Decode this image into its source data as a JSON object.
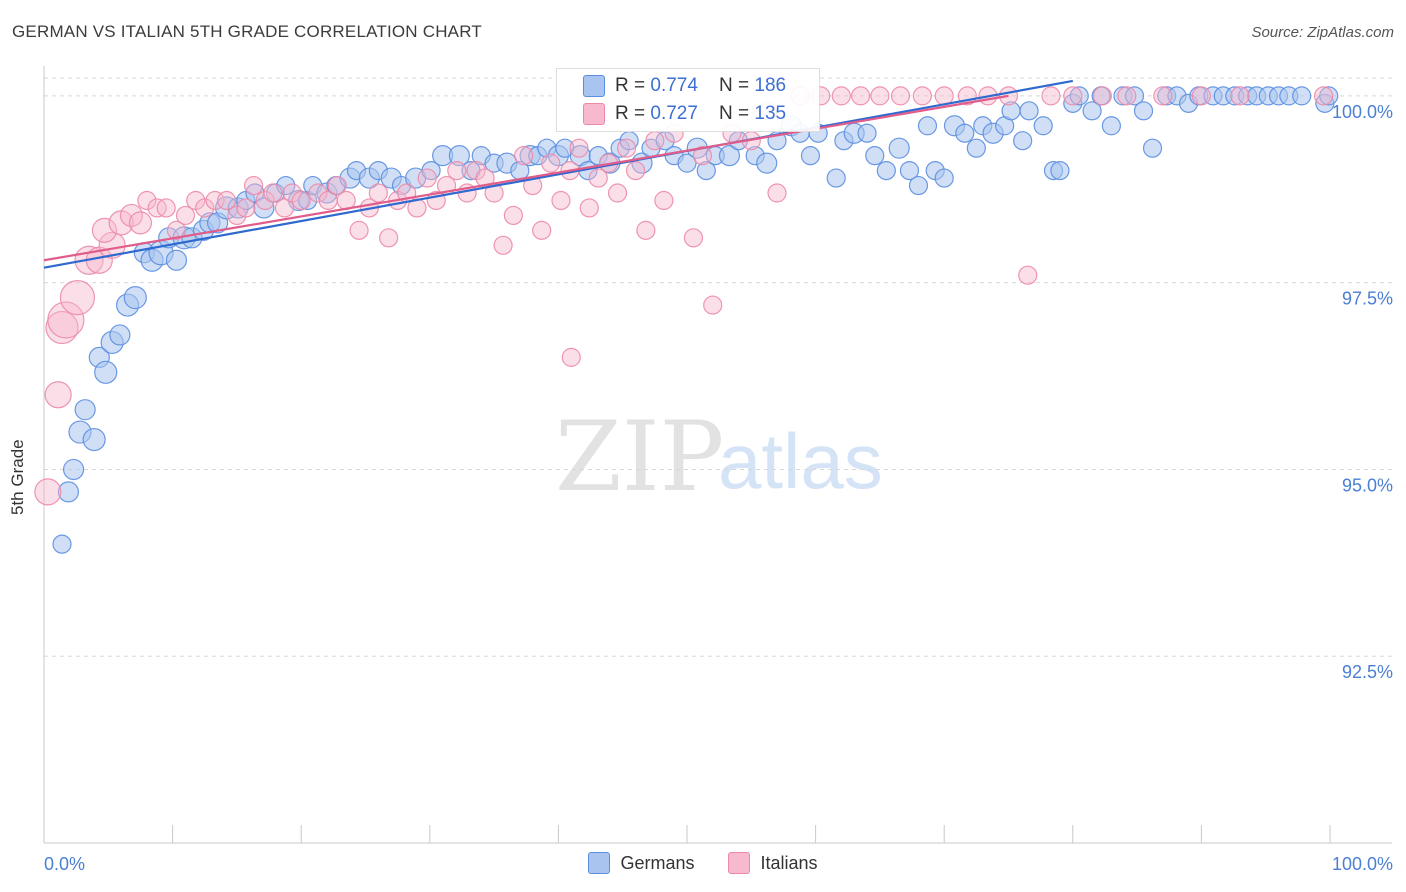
{
  "title": "GERMAN VS ITALIAN 5TH GRADE CORRELATION CHART",
  "source": "Source: ZipAtlas.com",
  "watermark": {
    "zip": "ZIP",
    "atlas": "atlas"
  },
  "colors": {
    "german_fill": "#a9c5ef",
    "german_stroke": "#5b8ee0",
    "german_line": "#2f6ad0",
    "italian_fill": "#f6b9cd",
    "italian_stroke": "#ec89aa",
    "italian_line": "#e05c8a",
    "axis_text": "#4a7fd4",
    "grid": "#d8d8d8"
  },
  "stats": [
    {
      "r_label": "R = ",
      "r_value": "0.774",
      "n_label": "N = ",
      "n_value": "186"
    },
    {
      "r_label": "R = ",
      "r_value": "0.727",
      "n_label": "N = ",
      "n_value": "135"
    }
  ],
  "legend": [
    "Germans",
    "Italians"
  ],
  "chart_data": {
    "type": "scatter",
    "title": "GERMAN VS ITALIAN 5TH GRADE CORRELATION CHART",
    "xlabel": "",
    "ylabel": "5th Grade",
    "xlim": [
      0,
      100
    ],
    "ylim": [
      90.0,
      100.4
    ],
    "x_tick_labels": [
      "0.0%",
      "100.0%"
    ],
    "y_ticks": [
      92.5,
      95.0,
      97.5,
      100.0
    ],
    "y_tick_labels": [
      "92.5%",
      "95.0%",
      "97.5%",
      "100.0%"
    ],
    "grid": true,
    "legend_position": "bottom",
    "series": [
      {
        "name": "Germans",
        "trend": [
          [
            0,
            97.7
          ],
          [
            80,
            100.2
          ]
        ],
        "points": [
          [
            1.4,
            94.0,
            9
          ],
          [
            1.9,
            94.7,
            10
          ],
          [
            2.3,
            95.0,
            10
          ],
          [
            2.8,
            95.5,
            11
          ],
          [
            3.9,
            95.4,
            11
          ],
          [
            3.2,
            95.8,
            10
          ],
          [
            4.3,
            96.5,
            10
          ],
          [
            4.8,
            96.3,
            11
          ],
          [
            5.3,
            96.7,
            11
          ],
          [
            5.9,
            96.8,
            10
          ],
          [
            6.5,
            97.2,
            11
          ],
          [
            7.1,
            97.3,
            11
          ],
          [
            7.8,
            97.9,
            10
          ],
          [
            8.4,
            97.8,
            11
          ],
          [
            9.1,
            97.9,
            12
          ],
          [
            9.7,
            98.1,
            10
          ],
          [
            10.3,
            97.8,
            10
          ],
          [
            10.9,
            98.1,
            11
          ],
          [
            11.5,
            98.1,
            10
          ],
          [
            12.4,
            98.2,
            10
          ],
          [
            12.9,
            98.3,
            10
          ],
          [
            13.5,
            98.3,
            10
          ],
          [
            14.2,
            98.5,
            11
          ],
          [
            15.1,
            98.5,
            10
          ],
          [
            15.7,
            98.6,
            9
          ],
          [
            16.4,
            98.7,
            9
          ],
          [
            17.1,
            98.5,
            10
          ],
          [
            18.0,
            98.7,
            9
          ],
          [
            18.8,
            98.8,
            9
          ],
          [
            19.8,
            98.6,
            10
          ],
          [
            20.5,
            98.6,
            9
          ],
          [
            20.9,
            98.8,
            9
          ],
          [
            22.0,
            98.7,
            10
          ],
          [
            22.7,
            98.8,
            9
          ],
          [
            23.8,
            98.9,
            10
          ],
          [
            24.3,
            99.0,
            9
          ],
          [
            25.3,
            98.9,
            10
          ],
          [
            26.0,
            99.0,
            9
          ],
          [
            27.0,
            98.9,
            10
          ],
          [
            27.8,
            98.8,
            9
          ],
          [
            28.9,
            98.9,
            10
          ],
          [
            30.1,
            99.0,
            9
          ],
          [
            31.0,
            99.2,
            10
          ],
          [
            32.3,
            99.2,
            10
          ],
          [
            33.2,
            99.0,
            9
          ],
          [
            34.0,
            99.2,
            9
          ],
          [
            35.0,
            99.1,
            9
          ],
          [
            36.0,
            99.1,
            10
          ],
          [
            37.0,
            99.0,
            9
          ],
          [
            37.8,
            99.2,
            10
          ],
          [
            38.4,
            99.2,
            9
          ],
          [
            39.1,
            99.3,
            9
          ],
          [
            40.0,
            99.2,
            10
          ],
          [
            40.5,
            99.3,
            9
          ],
          [
            41.7,
            99.2,
            10
          ],
          [
            42.3,
            99.0,
            9
          ],
          [
            43.1,
            99.2,
            9
          ],
          [
            44.0,
            99.1,
            10
          ],
          [
            44.8,
            99.3,
            9
          ],
          [
            45.5,
            99.4,
            9
          ],
          [
            46.5,
            99.1,
            10
          ],
          [
            47.2,
            99.3,
            9
          ],
          [
            48.3,
            99.4,
            9
          ],
          [
            49.0,
            99.2,
            9
          ],
          [
            50.0,
            99.1,
            9
          ],
          [
            50.8,
            99.3,
            10
          ],
          [
            51.5,
            99.0,
            9
          ],
          [
            52.2,
            99.2,
            9
          ],
          [
            53.3,
            99.2,
            10
          ],
          [
            54.0,
            99.4,
            9
          ],
          [
            55.3,
            99.2,
            9
          ],
          [
            56.2,
            99.1,
            10
          ],
          [
            57.0,
            99.4,
            9
          ],
          [
            58.1,
            99.6,
            10
          ],
          [
            58.8,
            99.5,
            9
          ],
          [
            59.6,
            99.2,
            9
          ],
          [
            60.2,
            99.5,
            9
          ],
          [
            61.6,
            98.9,
            9
          ],
          [
            62.2,
            99.4,
            9
          ],
          [
            63.0,
            99.5,
            10
          ],
          [
            64.0,
            99.5,
            9
          ],
          [
            64.6,
            99.2,
            9
          ],
          [
            65.5,
            99.0,
            9
          ],
          [
            66.5,
            99.3,
            10
          ],
          [
            67.3,
            99.0,
            9
          ],
          [
            68.0,
            98.8,
            9
          ],
          [
            68.7,
            99.6,
            9
          ],
          [
            69.3,
            99.0,
            9
          ],
          [
            70.0,
            98.9,
            9
          ],
          [
            70.8,
            99.6,
            10
          ],
          [
            71.6,
            99.5,
            9
          ],
          [
            72.5,
            99.3,
            9
          ],
          [
            73.0,
            99.6,
            9
          ],
          [
            73.8,
            99.5,
            10
          ],
          [
            74.7,
            99.6,
            9
          ],
          [
            75.2,
            99.8,
            9
          ],
          [
            76.1,
            99.4,
            9
          ],
          [
            76.6,
            99.8,
            9
          ],
          [
            77.7,
            99.6,
            9
          ],
          [
            78.5,
            99.0,
            9
          ],
          [
            79.0,
            99.0,
            9
          ],
          [
            80.0,
            99.9,
            9
          ],
          [
            80.5,
            100.0,
            9
          ],
          [
            81.5,
            99.8,
            9
          ],
          [
            82.2,
            100.0,
            9
          ],
          [
            83.0,
            99.6,
            9
          ],
          [
            83.9,
            100.0,
            9
          ],
          [
            84.8,
            100.0,
            9
          ],
          [
            85.5,
            99.8,
            9
          ],
          [
            86.2,
            99.3,
            9
          ],
          [
            87.3,
            100.0,
            9
          ],
          [
            88.1,
            100.0,
            9
          ],
          [
            89.0,
            99.9,
            9
          ],
          [
            89.8,
            100.0,
            9
          ],
          [
            90.9,
            100.0,
            9
          ],
          [
            91.7,
            100.0,
            9
          ],
          [
            92.6,
            100.0,
            9
          ],
          [
            93.6,
            100.0,
            9
          ],
          [
            94.3,
            100.0,
            9
          ],
          [
            95.2,
            100.0,
            9
          ],
          [
            96.0,
            100.0,
            9
          ],
          [
            96.8,
            100.0,
            9
          ],
          [
            97.8,
            100.0,
            9
          ],
          [
            99.6,
            99.9,
            9
          ],
          [
            99.9,
            100.0,
            9
          ]
        ]
      },
      {
        "name": "Italians",
        "trend": [
          [
            0,
            97.8
          ],
          [
            75,
            100.0
          ]
        ],
        "points": [
          [
            0.3,
            94.7,
            13
          ],
          [
            1.1,
            96.0,
            13
          ],
          [
            1.4,
            96.9,
            16
          ],
          [
            1.7,
            97.0,
            18
          ],
          [
            2.6,
            97.3,
            17
          ],
          [
            3.5,
            97.8,
            14
          ],
          [
            4.3,
            97.8,
            13
          ],
          [
            5.3,
            98.0,
            13
          ],
          [
            4.7,
            98.2,
            12
          ],
          [
            6.0,
            98.3,
            12
          ],
          [
            6.8,
            98.4,
            11
          ],
          [
            7.5,
            98.3,
            11
          ],
          [
            8.0,
            98.6,
            9
          ],
          [
            8.8,
            98.5,
            9
          ],
          [
            9.5,
            98.5,
            9
          ],
          [
            10.3,
            98.2,
            9
          ],
          [
            11.0,
            98.4,
            9
          ],
          [
            11.8,
            98.6,
            9
          ],
          [
            12.5,
            98.5,
            9
          ],
          [
            13.3,
            98.6,
            9
          ],
          [
            14.2,
            98.6,
            9
          ],
          [
            15.0,
            98.4,
            9
          ],
          [
            15.7,
            98.5,
            9
          ],
          [
            16.3,
            98.8,
            9
          ],
          [
            17.2,
            98.6,
            9
          ],
          [
            17.8,
            98.7,
            9
          ],
          [
            18.7,
            98.5,
            9
          ],
          [
            19.3,
            98.7,
            9
          ],
          [
            20.0,
            98.6,
            9
          ],
          [
            21.3,
            98.7,
            9
          ],
          [
            22.1,
            98.6,
            9
          ],
          [
            22.8,
            98.8,
            9
          ],
          [
            23.5,
            98.6,
            9
          ],
          [
            24.5,
            98.2,
            9
          ],
          [
            25.3,
            98.5,
            9
          ],
          [
            26.0,
            98.7,
            9
          ],
          [
            26.8,
            98.1,
            9
          ],
          [
            27.5,
            98.6,
            9
          ],
          [
            28.2,
            98.7,
            9
          ],
          [
            29.0,
            98.5,
            9
          ],
          [
            29.8,
            98.9,
            9
          ],
          [
            30.5,
            98.6,
            9
          ],
          [
            31.3,
            98.8,
            9
          ],
          [
            32.1,
            99.0,
            9
          ],
          [
            32.9,
            98.7,
            9
          ],
          [
            33.6,
            99.0,
            9
          ],
          [
            34.3,
            98.9,
            9
          ],
          [
            35.0,
            98.7,
            9
          ],
          [
            35.7,
            98.0,
            9
          ],
          [
            36.5,
            98.4,
            9
          ],
          [
            37.3,
            99.2,
            9
          ],
          [
            38.0,
            98.8,
            9
          ],
          [
            38.7,
            98.2,
            9
          ],
          [
            39.4,
            99.1,
            9
          ],
          [
            40.2,
            98.6,
            9
          ],
          [
            40.9,
            99.0,
            9
          ],
          [
            41.6,
            99.3,
            9
          ],
          [
            42.4,
            98.5,
            9
          ],
          [
            43.1,
            98.9,
            9
          ],
          [
            43.9,
            99.1,
            9
          ],
          [
            44.6,
            98.7,
            9
          ],
          [
            45.3,
            99.3,
            9
          ],
          [
            46.0,
            99.0,
            9
          ],
          [
            46.8,
            98.2,
            9
          ],
          [
            47.5,
            99.4,
            9
          ],
          [
            48.2,
            98.6,
            9
          ],
          [
            49.0,
            99.5,
            9
          ],
          [
            50.5,
            98.1,
            9
          ],
          [
            51.2,
            99.2,
            9
          ],
          [
            52.0,
            97.2,
            9
          ],
          [
            53.5,
            99.5,
            9
          ],
          [
            55.0,
            99.4,
            9
          ],
          [
            56.3,
            99.8,
            9
          ],
          [
            57.0,
            98.7,
            9
          ],
          [
            58.8,
            100.0,
            9
          ],
          [
            60.4,
            100.0,
            9
          ],
          [
            62.0,
            100.0,
            9
          ],
          [
            63.5,
            100.0,
            9
          ],
          [
            65.0,
            100.0,
            9
          ],
          [
            66.6,
            100.0,
            9
          ],
          [
            68.3,
            100.0,
            9
          ],
          [
            70.0,
            100.0,
            9
          ],
          [
            71.8,
            100.0,
            9
          ],
          [
            73.4,
            100.0,
            9
          ],
          [
            75.0,
            100.0,
            9
          ],
          [
            76.5,
            97.6,
            9
          ],
          [
            78.3,
            100.0,
            9
          ],
          [
            80.0,
            100.0,
            9
          ],
          [
            82.3,
            100.0,
            9
          ],
          [
            84.2,
            100.0,
            9
          ],
          [
            87.0,
            100.0,
            9
          ],
          [
            90.0,
            100.0,
            9
          ],
          [
            93.0,
            100.0,
            9
          ],
          [
            99.5,
            100.0,
            9
          ],
          [
            41.0,
            96.5,
            9
          ]
        ]
      }
    ]
  }
}
